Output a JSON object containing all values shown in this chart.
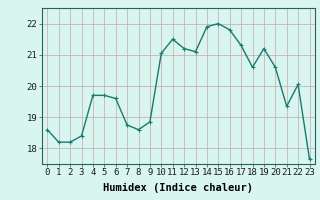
{
  "x": [
    0,
    1,
    2,
    3,
    4,
    5,
    6,
    7,
    8,
    9,
    10,
    11,
    12,
    13,
    14,
    15,
    16,
    17,
    18,
    19,
    20,
    21,
    22,
    23
  ],
  "y": [
    18.6,
    18.2,
    18.2,
    18.4,
    19.7,
    19.7,
    19.6,
    18.75,
    18.6,
    18.85,
    21.05,
    21.5,
    21.2,
    21.1,
    21.9,
    22.0,
    21.8,
    21.3,
    20.6,
    21.2,
    20.6,
    19.35,
    20.05,
    17.65
  ],
  "line_color": "#1a7a6e",
  "marker": "+",
  "marker_size": 3,
  "marker_lw": 0.8,
  "bg_color": "#d8f5f0",
  "grid_major_color": "#c4a8a8",
  "grid_minor_color": "#d4baba",
  "xlabel": "Humidex (Indice chaleur)",
  "xlabel_fontsize": 7.5,
  "tick_fontsize": 6.5,
  "ylim": [
    17.5,
    22.5
  ],
  "yticks": [
    18,
    19,
    20,
    21,
    22
  ],
  "xticks": [
    0,
    1,
    2,
    3,
    4,
    5,
    6,
    7,
    8,
    9,
    10,
    11,
    12,
    13,
    14,
    15,
    16,
    17,
    18,
    19,
    20,
    21,
    22,
    23
  ],
  "line_width": 1.0,
  "spine_color": "#2a6060"
}
